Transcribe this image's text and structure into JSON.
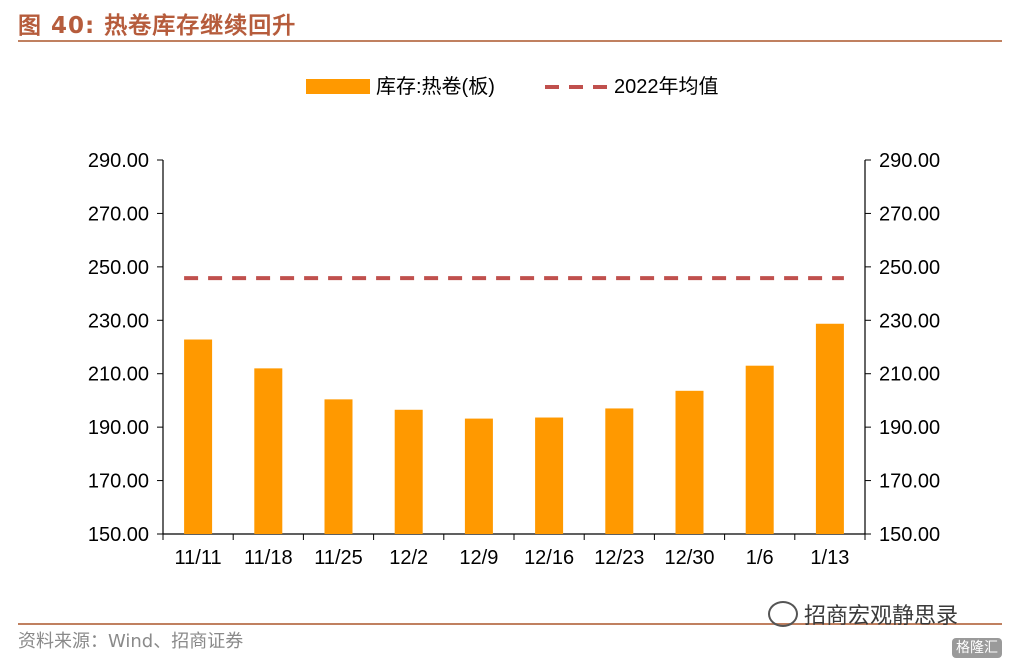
{
  "figure_title": "图 40: 热卷库存继续回升",
  "source": "资料来源：Wind、招商证券",
  "watermark": "招商宏观静思录",
  "badge": "格隆汇",
  "colors": {
    "bar": "#ff9900",
    "avg_line": "#c0504d",
    "title": "#b65c3c",
    "rule": "#c08060"
  },
  "chart_data": {
    "type": "bar",
    "title": "",
    "xlabel": "",
    "ylabel": "",
    "categories": [
      "11/11",
      "11/18",
      "11/25",
      "12/2",
      "12/9",
      "12/16",
      "12/23",
      "12/30",
      "1/6",
      "1/13"
    ],
    "series": [
      {
        "name": "库存:热卷(板)",
        "type": "bar",
        "values": [
          222.8,
          212.0,
          200.4,
          196.5,
          193.2,
          193.6,
          197.0,
          203.6,
          213.0,
          228.7
        ]
      },
      {
        "name": "2022年均值",
        "type": "line",
        "style": "dashed",
        "value": 245.8
      }
    ],
    "ylim": [
      150,
      290
    ],
    "yticks": [
      "150.00",
      "170.00",
      "190.00",
      "210.00",
      "230.00",
      "250.00",
      "270.00",
      "290.00"
    ],
    "ytick_values": [
      150,
      170,
      190,
      210,
      230,
      250,
      270,
      290
    ],
    "secondary_y": true,
    "grid": false,
    "legend": "top-center"
  }
}
